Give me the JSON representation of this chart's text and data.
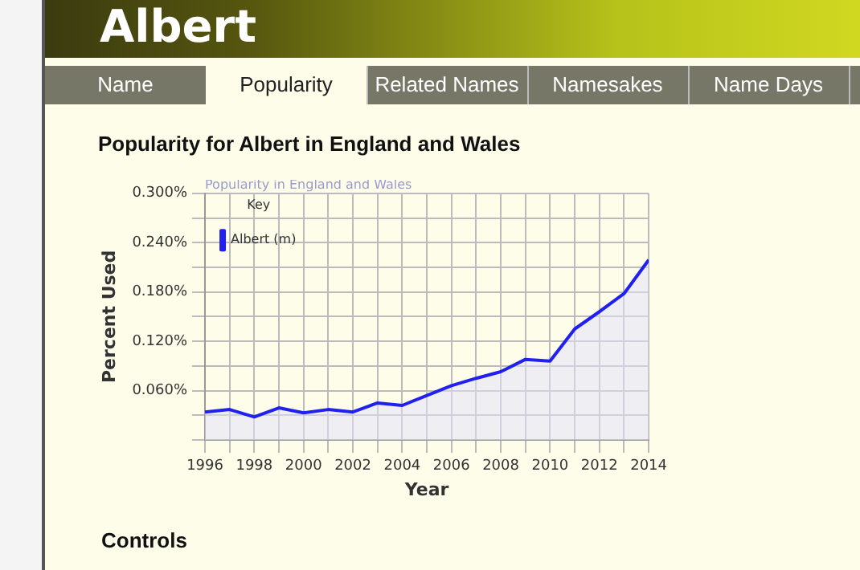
{
  "chart_data": {
    "type": "area",
    "title": "Popularity for Albert in England and Wales",
    "annotations": [
      "Albert",
      "Name",
      "Popularity",
      "Related Names",
      "Namesakes",
      "Name Days",
      "Controls",
      "Popularity in England and Wales"
    ],
    "xlabel": "Year",
    "ylabel": "Percent Used",
    "legend_title": "Key",
    "legend": "top left",
    "grid": true,
    "x": [
      1996,
      1997,
      1998,
      1999,
      2000,
      2001,
      2002,
      2003,
      2004,
      2005,
      2006,
      2007,
      2008,
      2009,
      2010,
      2011,
      2012,
      2013,
      2014
    ],
    "series": [
      {
        "name": "Albert (m)",
        "color": "#2020f0",
        "values": [
          0.034,
          0.037,
          0.028,
          0.039,
          0.033,
          0.037,
          0.034,
          0.045,
          0.042,
          0.054,
          0.066,
          0.075,
          0.083,
          0.098,
          0.096,
          0.135,
          0.156,
          0.178,
          0.219
        ]
      }
    ],
    "xlim": [
      1996,
      2014
    ],
    "xticks": [
      1996,
      {
        "value": 1997,
        "label": null
      },
      1998,
      {
        "value": 1999,
        "label": null
      },
      2000,
      {
        "value": 2001,
        "label": null
      },
      2002,
      {
        "value": 2003,
        "label": null
      },
      2004,
      {
        "value": 2005,
        "label": null
      },
      2006,
      {
        "value": 2007,
        "label": null
      },
      2008,
      {
        "value": 2009,
        "label": null
      },
      2010,
      {
        "value": 2011,
        "label": null
      },
      2012,
      {
        "value": 2013,
        "label": null
      },
      2014
    ],
    "ylim": [
      0,
      0.3
    ],
    "yticks": [
      {
        "value": 0,
        "label": null
      },
      {
        "value": 0.03,
        "label": null
      },
      {
        "value": 0.06,
        "label": "0.060%"
      },
      {
        "value": 0.09,
        "label": null
      },
      {
        "value": 0.12,
        "label": "0.120%"
      },
      {
        "value": 0.15,
        "label": null
      },
      {
        "value": 0.18,
        "label": "0.180%"
      },
      {
        "value": 0.21,
        "label": null
      },
      {
        "value": 0.24,
        "label": "0.240%"
      },
      {
        "value": 0.27,
        "label": null
      },
      {
        "value": 0.3,
        "label": "0.300%"
      }
    ]
  }
}
